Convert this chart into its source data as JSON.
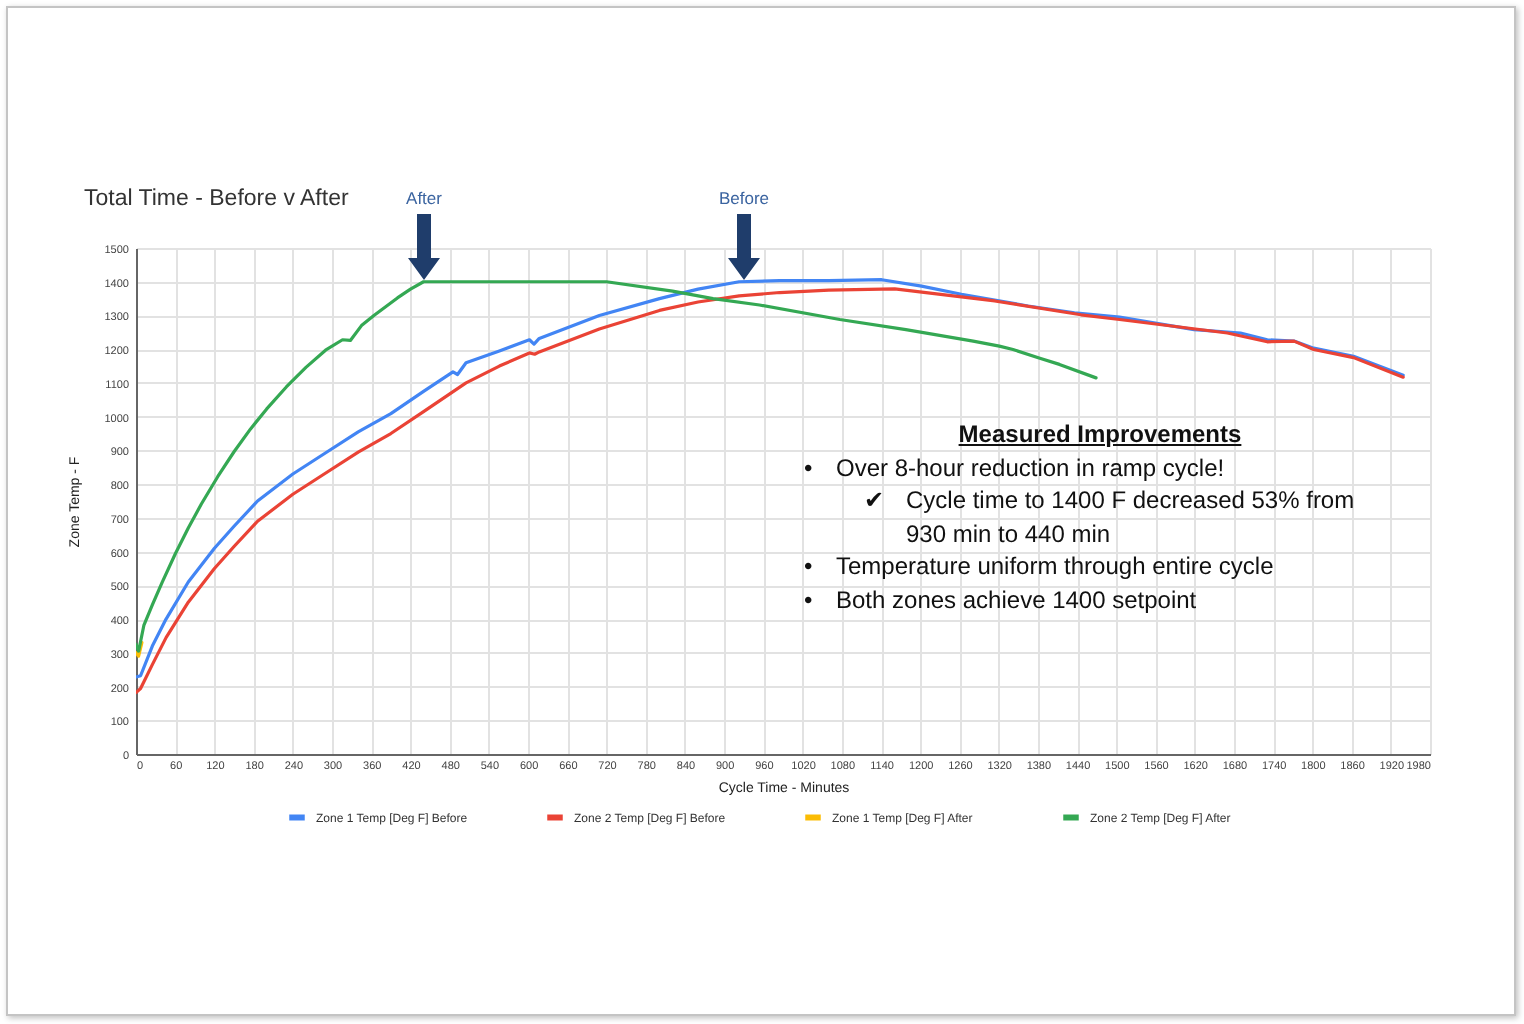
{
  "chart_data": {
    "type": "line",
    "title": "Total Time - Before v After",
    "xlabel": "Cycle Time - Minutes",
    "ylabel": "Zone Temp - F",
    "xlim": [
      0,
      1980
    ],
    "xticks": [
      0,
      60,
      120,
      180,
      240,
      300,
      360,
      420,
      480,
      540,
      600,
      660,
      720,
      780,
      840,
      900,
      960,
      1020,
      1080,
      1140,
      1200,
      1260,
      1320,
      1380,
      1440,
      1500,
      1560,
      1620,
      1680,
      1740,
      1800,
      1860,
      1920,
      1980
    ],
    "ylim": [
      0,
      1500
    ],
    "yticks": [
      0,
      100,
      200,
      300,
      400,
      500,
      600,
      700,
      800,
      900,
      1000,
      1100,
      1200,
      1300,
      1400,
      1500
    ],
    "grid": true,
    "legend": "bottom",
    "marker": "none",
    "line_style": "solid",
    "series": [
      {
        "name": "Zone 1 Temp [Deg F] Before",
        "color": "#4285f4",
        "x": [
          0,
          7,
          25,
          46,
          80,
          120,
          150,
          186,
          240,
          288,
          340,
          390,
          440,
          485,
          492,
          505,
          556,
          602,
          609,
          617,
          709,
          801,
          860,
          923,
          985,
          1060,
          1141,
          1202,
          1263,
          1365,
          1436,
          1505,
          1619,
          1690,
          1731,
          1772,
          1802,
          1863,
          1939
        ],
        "values": [
          228,
          232,
          320,
          400,
          510,
          610,
          675,
          750,
          830,
          890,
          955,
          1009,
          1075,
          1133,
          1125,
          1160,
          1195,
          1228,
          1215,
          1232,
          1300,
          1350,
          1378,
          1400,
          1403,
          1403,
          1406,
          1387,
          1363,
          1328,
          1308,
          1295,
          1258,
          1248,
          1228,
          1224,
          1203,
          1179,
          1123
        ]
      },
      {
        "name": "Zone 2 Temp [Deg F] Before",
        "color": "#ea4335",
        "x": [
          0,
          7,
          25,
          46,
          80,
          120,
          150,
          186,
          240,
          288,
          340,
          390,
          440,
          505,
          556,
          602,
          610,
          617,
          709,
          801,
          860,
          923,
          985,
          1060,
          1161,
          1212,
          1314,
          1446,
          1505,
          1670,
          1731,
          1772,
          1802,
          1863,
          1939
        ],
        "values": [
          182,
          194,
          265,
          345,
          450,
          550,
          615,
          690,
          770,
          830,
          895,
          950,
          1015,
          1100,
          1150,
          1189,
          1185,
          1192,
          1260,
          1315,
          1340,
          1358,
          1368,
          1375,
          1379,
          1367,
          1343,
          1302,
          1288,
          1248,
          1222,
          1224,
          1199,
          1175,
          1117
        ]
      },
      {
        "name": "Zone 1 Temp [Deg F] After",
        "color": "#fbbc04",
        "x": [
          0,
          4,
          9
        ],
        "values": [
          300,
          290,
          330
        ]
      },
      {
        "name": "Zone 2 Temp [Deg F] After",
        "color": "#34a853",
        "x": [
          0,
          4,
          12,
          25,
          40,
          60,
          80,
          100,
          125,
          150,
          175,
          200,
          230,
          260,
          290,
          316,
          328,
          345,
          364,
          400,
          420,
          440,
          600,
          720,
          821,
          883,
          954,
          1077,
          1178,
          1281,
          1321,
          1342,
          1383,
          1413,
          1469
        ],
        "values": [
          325,
          305,
          381,
          442,
          509,
          593,
          670,
          741,
          822,
          896,
          963,
          1023,
          1088,
          1146,
          1197,
          1228,
          1226,
          1270,
          1300,
          1352,
          1378,
          1400,
          1400,
          1400,
          1372,
          1350,
          1331,
          1288,
          1258,
          1224,
          1209,
          1199,
          1173,
          1155,
          1115
        ]
      }
    ],
    "annotations": [
      "After",
      "Before",
      "Measured Improvements",
      "•\tOver 8-hour reduction in ramp cycle!",
      "✔\tCycle time to 1400 F decreased 53% from 930 min to 440 min",
      "•\tTemperature uniform through entire cycle",
      "•\tBoth zones achieve 1400 setpoint"
    ]
  }
}
